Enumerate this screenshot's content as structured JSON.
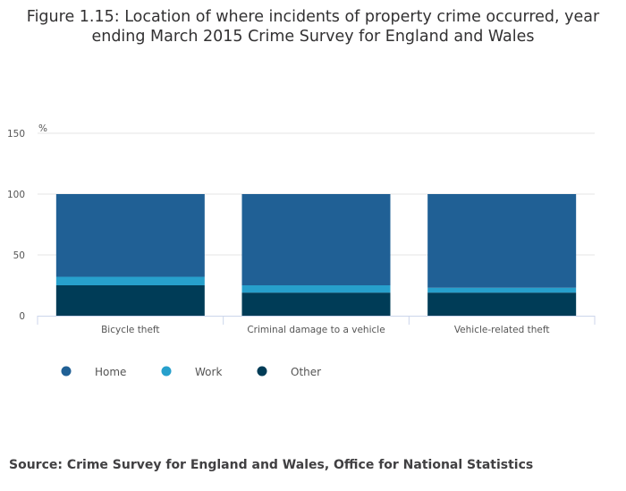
{
  "page": {
    "title_line1": "Figure 1.15: Location of where incidents of property crime occurred, year",
    "title_line2": "ending March 2015 Crime Survey for England and Wales",
    "source": "Source: Crime Survey for England and Wales, Office for National Statistics"
  },
  "chart_data": {
    "type": "bar",
    "stacked": true,
    "title": "Figure 1.15: Location of where incidents of property crime occurred, year ending March 2015 Crime Survey for England and Wales",
    "xlabel": "",
    "ylabel": "%",
    "ylim": [
      0,
      150
    ],
    "yticks": [
      "0",
      "50",
      "100",
      "150"
    ],
    "ytick_values": [
      0,
      50,
      100,
      150
    ],
    "grid": true,
    "legend_position": "bottom-left",
    "categories": [
      "Bicycle theft",
      "Criminal damage to a vehicle",
      "Vehicle-related theft"
    ],
    "series": [
      {
        "name": "Other",
        "color": "#003c57",
        "values": [
          25,
          19,
          19
        ]
      },
      {
        "name": "Work",
        "color": "#27a0cc",
        "values": [
          7,
          6,
          4
        ]
      },
      {
        "name": "Home",
        "color": "#206095",
        "values": [
          68,
          75,
          77
        ]
      }
    ],
    "legend": [
      {
        "name": "Home",
        "color": "#206095"
      },
      {
        "name": "Work",
        "color": "#27a0cc"
      },
      {
        "name": "Other",
        "color": "#003c57"
      }
    ]
  }
}
